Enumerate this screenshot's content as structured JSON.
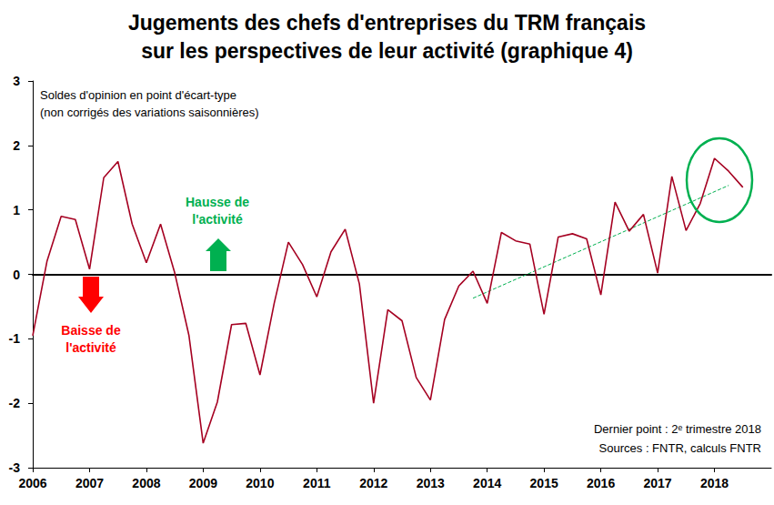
{
  "chart_data": {
    "type": "line",
    "title": "Jugements des chefs d'entreprises du TRM français\nsur les perspectives de leur activité (graphique 4)",
    "categories": [
      "2006",
      null,
      null,
      null,
      "2007",
      null,
      null,
      null,
      "2008",
      null,
      null,
      null,
      "2009",
      null,
      null,
      null,
      "2010",
      null,
      null,
      null,
      "2011",
      null,
      null,
      null,
      "2012",
      null,
      null,
      null,
      "2013",
      null,
      null,
      null,
      "2014",
      null,
      null,
      null,
      "2015",
      null,
      null,
      null,
      "2016",
      null,
      null,
      null,
      "2017",
      null,
      null,
      null,
      "2018",
      null,
      null,
      null,
      null
    ],
    "series": [
      {
        "color": "#a50021",
        "line_style": "solid",
        "values": [
          -0.95,
          0.2,
          0.9,
          0.85,
          0.08,
          1.5,
          1.75,
          0.78,
          0.18,
          0.78,
          0.02,
          -0.95,
          -2.62,
          -1.98,
          -0.78,
          -0.76,
          -1.56,
          -0.45,
          0.5,
          0.15,
          -0.35,
          0.35,
          0.7,
          -0.15,
          -2.0,
          -0.55,
          -0.72,
          -1.6,
          -1.95,
          -0.7,
          -0.18,
          0.05,
          -0.45,
          0.65,
          0.52,
          0.47,
          -0.62,
          0.58,
          0.63,
          0.55,
          -0.32,
          1.12,
          0.67,
          0.93,
          0.02,
          1.52,
          0.68,
          1.1,
          1.8,
          1.6,
          1.35,
          null,
          null
        ]
      },
      {
        "color": "#00b050",
        "line_style": "dashed",
        "values": [
          null,
          null,
          null,
          null,
          null,
          null,
          null,
          null,
          null,
          null,
          null,
          null,
          null,
          null,
          null,
          null,
          null,
          null,
          null,
          null,
          null,
          null,
          null,
          null,
          null,
          null,
          null,
          null,
          null,
          null,
          null,
          -0.37,
          null,
          null,
          null,
          null,
          null,
          null,
          null,
          null,
          null,
          null,
          null,
          null,
          null,
          null,
          null,
          null,
          null,
          1.38,
          null,
          null,
          null
        ]
      }
    ],
    "ylim": [
      -3,
      3
    ],
    "yticks": [
      -3,
      -2,
      -1,
      0,
      1,
      2,
      3
    ],
    "grid": false,
    "annotations": {
      "note": "Soldes d'opinion en point d'écart-type\n(non corrigés des variations saisonnières)",
      "up": "Hausse de\nl'activité",
      "down": "Baisse de\nl'activité",
      "last_point": "Dernier point : 2ᵉ trimestre 2018",
      "source": "Sources : FNTR, calculs FNTR"
    }
  }
}
